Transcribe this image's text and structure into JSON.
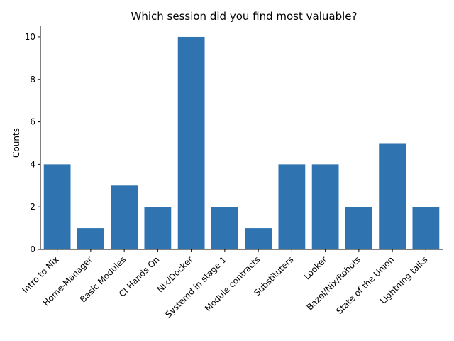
{
  "chart_data": {
    "type": "bar",
    "title": "Which session did you find most valuable?",
    "xlabel": "",
    "ylabel": "Counts",
    "categories": [
      "Intro to Nix",
      "Home-Manager",
      "Basic Modules",
      "CI Hands On",
      "Nix/Docker",
      "Systemd in stage 1",
      "Module contracts",
      "Substituters",
      "Looker",
      "Bazel/Nix/Robots",
      "State of the Union",
      "Lightning talks"
    ],
    "values": [
      4,
      1,
      3,
      2,
      10,
      2,
      1,
      4,
      4,
      2,
      5,
      2
    ],
    "yticks": [
      0,
      2,
      4,
      6,
      8,
      10
    ],
    "ylim": [
      0,
      10.5
    ],
    "bar_color": "#2f74b0",
    "grid": false
  }
}
